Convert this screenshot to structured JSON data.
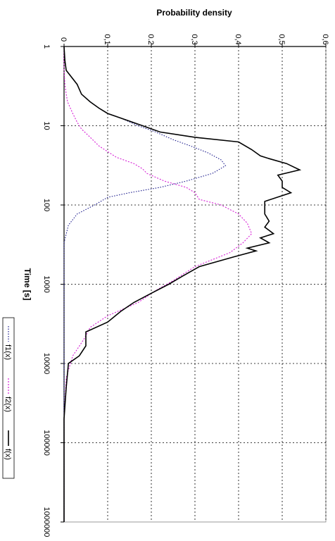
{
  "chart_data": {
    "type": "line",
    "xlabel": "Time [s]",
    "ylabel": "Probability density",
    "x_scale": "log",
    "x_ticks": [
      "1",
      "10",
      "100",
      "1000",
      "10000",
      "100000",
      "1000000"
    ],
    "y_ticks": [
      "0",
      "0,1",
      "0.2",
      "0,3",
      "0,4",
      "0,5",
      "0,6"
    ],
    "ylim": [
      0,
      0.6
    ],
    "xlim": [
      1,
      1000000
    ],
    "grid": true,
    "legend_position": "bottom",
    "series": [
      {
        "name": "f1(x)",
        "color": "#1a1a8c",
        "style": "dotted",
        "points": [
          [
            1,
            0
          ],
          [
            1.5,
            0.002
          ],
          [
            2,
            0.005
          ],
          [
            3,
            0.03
          ],
          [
            4,
            0.04
          ],
          [
            5,
            0.06
          ],
          [
            6,
            0.08
          ],
          [
            7,
            0.1
          ],
          [
            8,
            0.13
          ],
          [
            10,
            0.17
          ],
          [
            12,
            0.21
          ],
          [
            15,
            0.25
          ],
          [
            18,
            0.29
          ],
          [
            22,
            0.33
          ],
          [
            27,
            0.36
          ],
          [
            32,
            0.37
          ],
          [
            40,
            0.34
          ],
          [
            50,
            0.28
          ],
          [
            60,
            0.22
          ],
          [
            70,
            0.15
          ],
          [
            80,
            0.1
          ],
          [
            100,
            0.07
          ],
          [
            130,
            0.03
          ],
          [
            180,
            0.01
          ],
          [
            300,
            0
          ],
          [
            1000000,
            0
          ]
        ]
      },
      {
        "name": "f2(x)",
        "color": "#d61fd6",
        "style": "dashed",
        "points": [
          [
            1,
            0
          ],
          [
            2,
            0
          ],
          [
            3,
            0.002
          ],
          [
            4,
            0.005
          ],
          [
            5,
            0.008
          ],
          [
            7,
            0.02
          ],
          [
            9,
            0.03
          ],
          [
            11,
            0.04
          ],
          [
            14,
            0.06
          ],
          [
            18,
            0.08
          ],
          [
            25,
            0.12
          ],
          [
            30,
            0.16
          ],
          [
            35,
            0.18
          ],
          [
            40,
            0.19
          ],
          [
            50,
            0.23
          ],
          [
            60,
            0.28
          ],
          [
            70,
            0.3
          ],
          [
            85,
            0.31
          ],
          [
            100,
            0.36
          ],
          [
            130,
            0.4
          ],
          [
            170,
            0.42
          ],
          [
            230,
            0.43
          ],
          [
            300,
            0.41
          ],
          [
            400,
            0.38
          ],
          [
            600,
            0.3
          ],
          [
            900,
            0.25
          ],
          [
            1200,
            0.21
          ],
          [
            1700,
            0.17
          ],
          [
            2500,
            0.1
          ],
          [
            3500,
            0.06
          ],
          [
            5000,
            0.045
          ],
          [
            8000,
            0.02
          ],
          [
            15000,
            0.005
          ],
          [
            50000,
            0
          ],
          [
            1000000,
            0
          ]
        ]
      },
      {
        "name": "f(x)",
        "color": "#000000",
        "style": "solid",
        "points": [
          [
            1,
            0
          ],
          [
            1.5,
            0.002
          ],
          [
            2,
            0.005
          ],
          [
            3,
            0.03
          ],
          [
            4,
            0.04
          ],
          [
            5,
            0.06
          ],
          [
            6,
            0.08
          ],
          [
            7,
            0.1
          ],
          [
            8,
            0.13
          ],
          [
            10,
            0.18
          ],
          [
            12,
            0.22
          ],
          [
            14,
            0.3
          ],
          [
            16,
            0.4
          ],
          [
            20,
            0.43
          ],
          [
            24,
            0.45
          ],
          [
            26,
            0.47
          ],
          [
            30,
            0.51
          ],
          [
            36,
            0.54
          ],
          [
            42,
            0.49
          ],
          [
            50,
            0.5
          ],
          [
            60,
            0.5
          ],
          [
            70,
            0.52
          ],
          [
            90,
            0.46
          ],
          [
            130,
            0.46
          ],
          [
            160,
            0.47
          ],
          [
            190,
            0.46
          ],
          [
            230,
            0.48
          ],
          [
            260,
            0.45
          ],
          [
            300,
            0.47
          ],
          [
            350,
            0.42
          ],
          [
            380,
            0.44
          ],
          [
            450,
            0.39
          ],
          [
            600,
            0.31
          ],
          [
            800,
            0.27
          ],
          [
            1000,
            0.24
          ],
          [
            1300,
            0.2
          ],
          [
            1700,
            0.16
          ],
          [
            2200,
            0.13
          ],
          [
            3000,
            0.1
          ],
          [
            4000,
            0.05
          ],
          [
            6000,
            0.05
          ],
          [
            8000,
            0.035
          ],
          [
            10000,
            0.01
          ],
          [
            20000,
            0.005
          ],
          [
            50000,
            0
          ],
          [
            1000000,
            0
          ]
        ]
      }
    ]
  }
}
